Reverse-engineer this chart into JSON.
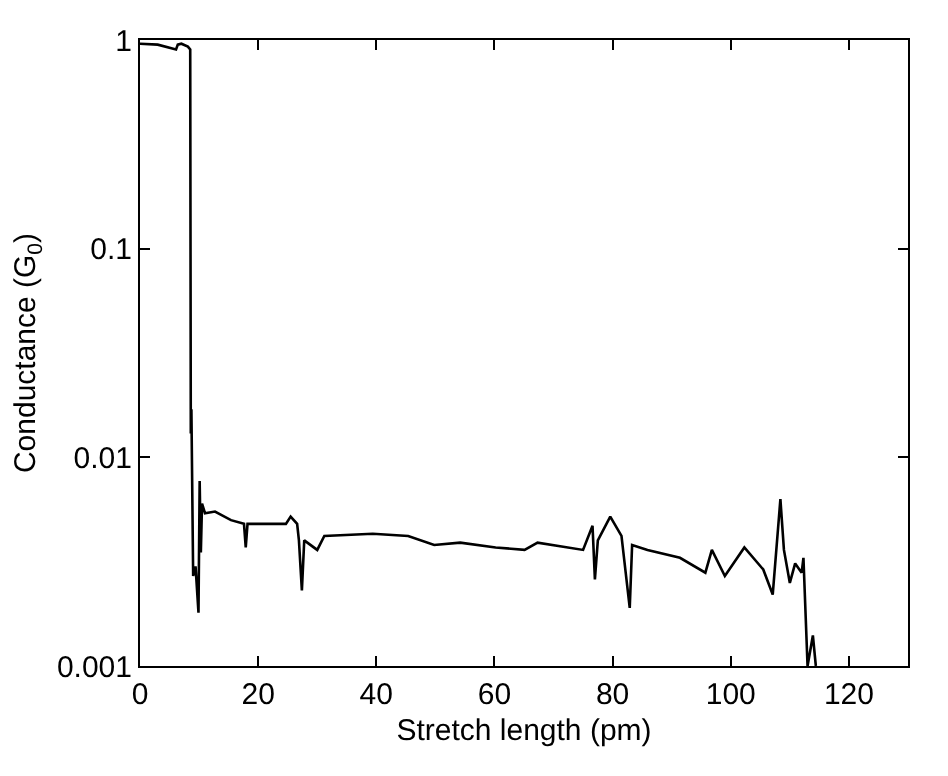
{
  "chart_data": {
    "type": "line",
    "xlabel": "Stretch length (pm)",
    "ylabel": "Conductance (G$_{0}$)",
    "log": "y",
    "grid": false,
    "marker": "none",
    "line_style": "solid",
    "xlim": [
      0,
      130
    ],
    "xticks": [
      0,
      20,
      40,
      60,
      80,
      100,
      120
    ],
    "ylim": [
      0.001,
      1
    ],
    "yticks": [
      {
        "value": 0.001,
        "label": "0.001"
      },
      {
        "value": 0.01,
        "label": "0.01"
      },
      {
        "value": 0.1,
        "label": "0.1"
      },
      {
        "value": 1,
        "label": "1"
      }
    ],
    "series": [
      {
        "color": "#000000",
        "x": [
          0,
          3,
          6.1,
          6.4,
          7,
          8.1,
          8.5,
          8.6,
          8.7,
          9.0,
          9.4,
          9.9,
          10.1,
          10.3,
          10.5,
          11.0,
          12.7,
          15.4,
          17.6,
          17.9,
          18.2,
          24.7,
          25.5,
          26.6,
          26.9,
          27.4,
          27.8,
          30,
          31.2,
          39.4,
          45.4,
          49.8,
          54.2,
          60.2,
          65.1,
          67.3,
          75,
          76.6,
          77,
          77.5,
          79.6,
          81.5,
          82.9,
          83.3,
          85.9,
          91.4,
          95.7,
          96.8,
          99,
          102.3,
          105.5,
          107.1,
          108.4,
          109,
          110,
          110.9,
          112,
          112.3,
          113,
          113.9,
          114.4
        ],
        "values": [
          0.96,
          0.95,
          0.9,
          0.95,
          0.96,
          0.93,
          0.9,
          0.013,
          0.017,
          0.0027,
          0.003,
          0.0018,
          0.0077,
          0.0035,
          0.006,
          0.0054,
          0.0055,
          0.005,
          0.0048,
          0.0037,
          0.0048,
          0.0048,
          0.0052,
          0.0048,
          0.004,
          0.0023,
          0.004,
          0.0036,
          0.0042,
          0.0043,
          0.0042,
          0.0038,
          0.0039,
          0.0037,
          0.0036,
          0.0039,
          0.0036,
          0.0047,
          0.0026,
          0.004,
          0.0052,
          0.0042,
          0.0019,
          0.0038,
          0.0036,
          0.0033,
          0.0028,
          0.0036,
          0.0027,
          0.0037,
          0.0029,
          0.0022,
          0.0063,
          0.0036,
          0.0025,
          0.0031,
          0.0028,
          0.0033,
          0.001,
          0.0014,
          0.001
        ]
      }
    ]
  }
}
